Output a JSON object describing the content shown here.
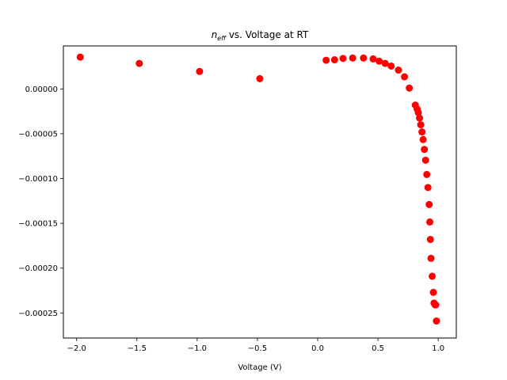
{
  "chart_data": {
    "type": "scatter",
    "title_main": "n",
    "title_sub": "eff",
    "title_rest": " vs. Voltage at RT",
    "xlabel": "Voltage (V)",
    "ylabel": "",
    "xlim": [
      -2.11,
      1.15
    ],
    "ylim": [
      -0.000278,
      4.8e-05
    ],
    "xticks": [
      -2.0,
      -1.5,
      -1.0,
      -0.5,
      0.0,
      0.5,
      1.0
    ],
    "xtick_labels": [
      "−2.0",
      "−1.5",
      "−1.0",
      "−0.5",
      "0.0",
      "0.5",
      "1.0"
    ],
    "yticks": [
      0.0,
      -5e-05,
      -0.0001,
      -0.00015,
      -0.0002,
      -0.00025
    ],
    "ytick_labels": [
      "0.00000",
      "−0.00005",
      "−0.00010",
      "−0.00015",
      "−0.00020",
      "−0.00025"
    ],
    "grid": false,
    "marker_color": "#ff0000",
    "series": [
      {
        "x": [
          -1.97,
          -1.48,
          -0.98,
          -0.48,
          0.07,
          0.14,
          0.21,
          0.29,
          0.38,
          0.46,
          0.51,
          0.56,
          0.61,
          0.67,
          0.72,
          0.76,
          0.81,
          0.825,
          0.835,
          0.845,
          0.855,
          0.865,
          0.875,
          0.885,
          0.895,
          0.905,
          0.915,
          0.925,
          0.93,
          0.935,
          0.94,
          0.95,
          0.96,
          0.965,
          0.975,
          0.98,
          0.985
        ],
        "y": [
          3.55e-05,
          2.85e-05,
          1.95e-05,
          1.15e-05,
          3.2e-05,
          3.25e-05,
          3.4e-05,
          3.45e-05,
          3.45e-05,
          3.35e-05,
          3.1e-05,
          2.85e-05,
          2.55e-05,
          2.1e-05,
          1.35e-05,
          1e-06,
          -1.8e-05,
          -2.25e-05,
          -2.65e-05,
          -3.25e-05,
          -4e-05,
          -4.8e-05,
          -5.65e-05,
          -6.75e-05,
          -7.95e-05,
          -9.55e-05,
          -0.00011,
          -0.000129,
          -0.0001485,
          -0.000168,
          -0.000189,
          -0.000209,
          -0.000227,
          -0.000239,
          -0.000241,
          -0.000241,
          -0.000259
        ]
      }
    ]
  }
}
